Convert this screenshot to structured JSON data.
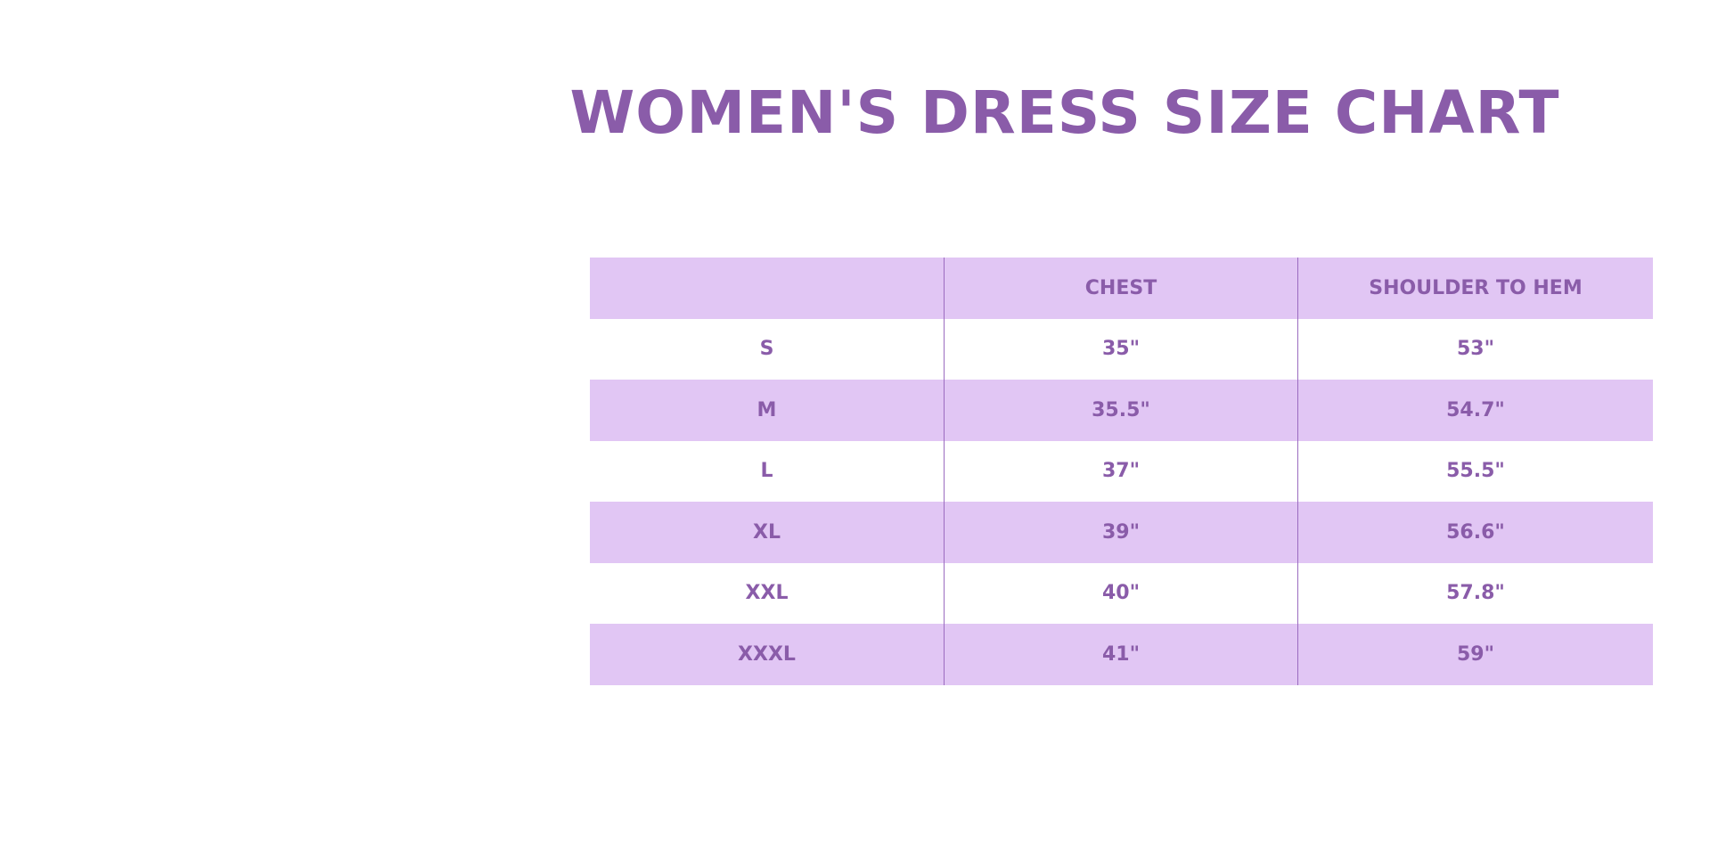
{
  "title": "WOMEN'S DRESS SIZE CHART",
  "colors": {
    "text": "#8a5ca9",
    "shade": "#e1c6f4",
    "background": "#ffffff"
  },
  "table": {
    "headers": [
      "",
      "CHEST",
      "SHOULDER TO HEM"
    ],
    "rows": [
      [
        "S",
        "35\"",
        "53\""
      ],
      [
        "M",
        "35.5\"",
        "54.7\""
      ],
      [
        "L",
        "37\"",
        "55.5\""
      ],
      [
        "XL",
        "39\"",
        "56.6\""
      ],
      [
        "XXL",
        "40\"",
        "57.8\""
      ],
      [
        "XXXL",
        "41\"",
        "59\""
      ]
    ]
  }
}
